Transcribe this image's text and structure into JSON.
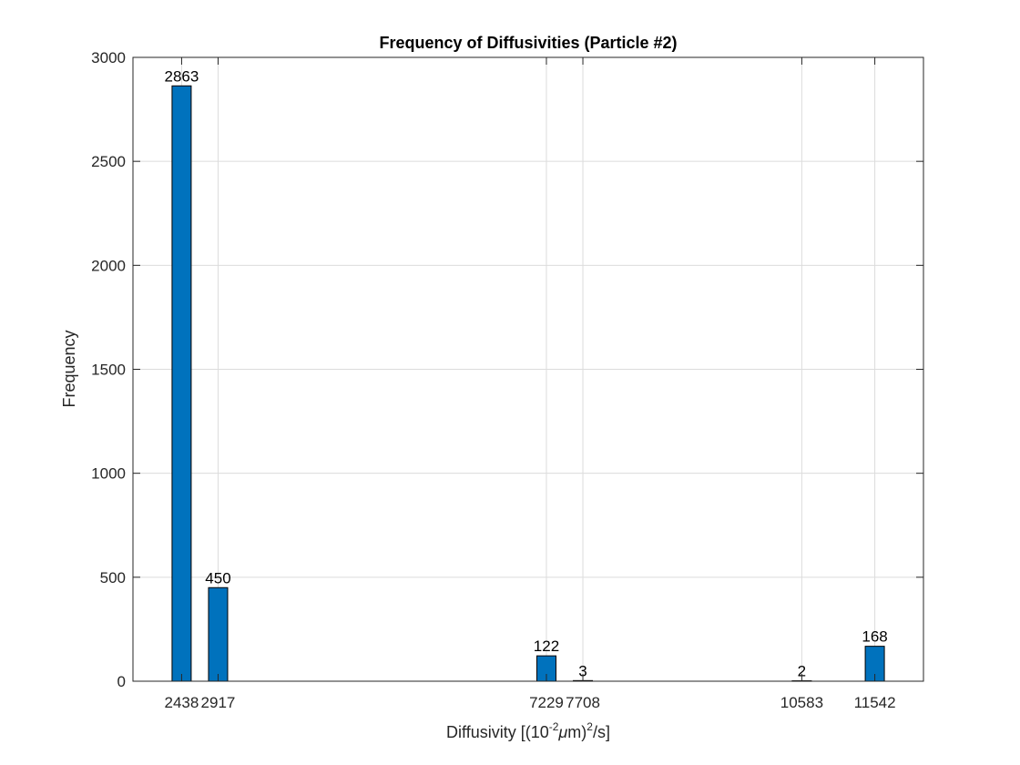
{
  "chart_data": {
    "type": "bar",
    "title": "Frequency of Diffusivities (Particle #2)",
    "xlabel_parts": [
      "Diffusivity [(10",
      "-2",
      "μ",
      "m)",
      "2",
      "/s]"
    ],
    "ylabel": "Frequency",
    "x": [
      2438,
      2917,
      7229,
      7708,
      10583,
      11542
    ],
    "values": [
      2863,
      450,
      122,
      3,
      2,
      168
    ],
    "xticks": [
      "2438",
      "2917",
      "7229",
      "7708",
      "10583",
      "11542"
    ],
    "xlim": [
      1799,
      12181
    ],
    "ylim": [
      0,
      3000
    ],
    "yticks": [
      "0",
      "500",
      "1000",
      "1500",
      "2000",
      "2500",
      "3000"
    ],
    "grid": true,
    "bar_color": "#0072bd",
    "bar_edge_color": "#000000"
  }
}
